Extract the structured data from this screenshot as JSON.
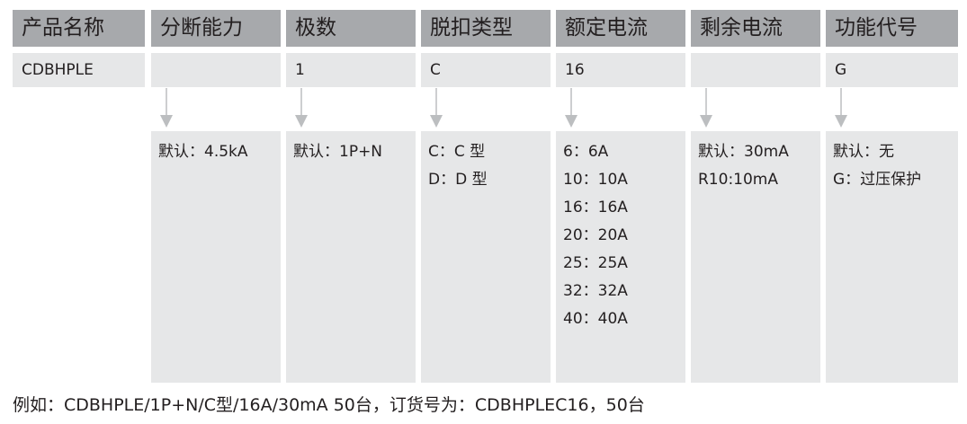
{
  "columns": [
    {
      "header": "产品名称",
      "code": "CDBHPLE",
      "options": []
    },
    {
      "header": "分断能力",
      "code": "",
      "options": [
        "默认：4.5kA"
      ]
    },
    {
      "header": "极数",
      "code": "1",
      "options": [
        "默认：1P+N"
      ]
    },
    {
      "header": "脱扣类型",
      "code": "C",
      "options": [
        "C：C 型",
        "D：D 型"
      ]
    },
    {
      "header": "额定电流",
      "code": "16",
      "options": [
        "6：6A",
        "10：10A",
        "16：16A",
        "20：20A",
        "25：25A",
        "32：32A",
        "40：40A"
      ]
    },
    {
      "header": "剩余电流",
      "code": "",
      "options": [
        "默认：30mA",
        "R10:10mA"
      ]
    },
    {
      "header": "功能代号",
      "code": "G",
      "options": [
        "默认：无",
        "G：过压保护"
      ]
    }
  ],
  "footer": "例如：CDBHPLE/1P+N/C型/16A/30mA 50台，订货号为：CDBHPLEC16，50台",
  "colors": {
    "header_bg": "#a7a9ac",
    "cell_bg": "#e6e7e8",
    "arrow": "#bcbec0"
  }
}
